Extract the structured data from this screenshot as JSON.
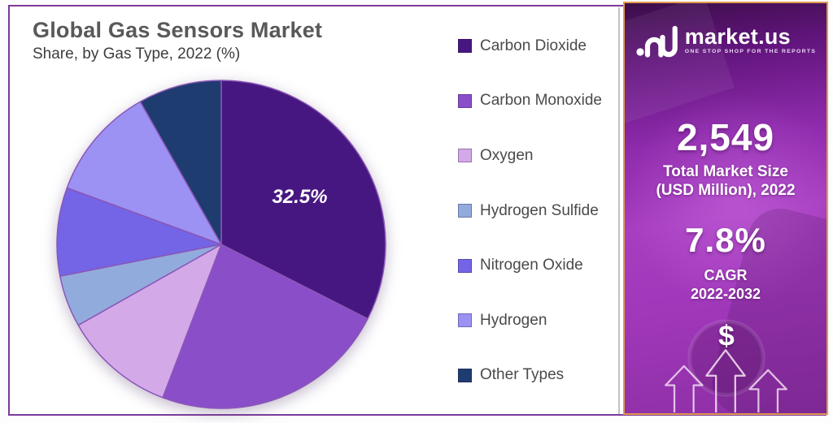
{
  "page": {
    "title": "Global Gas Sensors Market",
    "subtitle": "Share, by Gas Type, 2022 (%)"
  },
  "chart_data": {
    "type": "pie",
    "title": "Global Gas Sensors Market Share, by Gas Type, 2022 (%)",
    "unit": "%",
    "categories": [
      "Carbon Dioxide",
      "Carbon Monoxide",
      "Oxygen",
      "Hydrogen Sulfide",
      "Nitrogen Oxide",
      "Hydrogen",
      "Other Types"
    ],
    "values": [
      32.5,
      23.3,
      11.0,
      5.1,
      8.7,
      11.2,
      8.2
    ],
    "colors": [
      "#471781",
      "#8a4ec8",
      "#d4a9e8",
      "#92abdd",
      "#7365e6",
      "#9c92f3",
      "#1e3c6f"
    ],
    "slice_stroke": "#8a56b8",
    "start_angle_deg": 0,
    "direction": "clockwise",
    "legend_position": "right",
    "labeled_slice": {
      "index": 0,
      "text": "32.5%",
      "radius_frac": 0.56
    }
  },
  "sidebar": {
    "brand": "market.us",
    "tagline": "ONE STOP SHOP FOR THE REPORTS",
    "market_size_value": "2,549",
    "market_size_label_line1": "Total Market Size",
    "market_size_label_line2": "(USD Million), 2022",
    "cagr_value": "7.8%",
    "cagr_label_line1": "CAGR",
    "cagr_label_line2": "2022-2032",
    "dollar_symbol": "$"
  },
  "colors": {
    "page_border": "#7b3b9b",
    "sidebar_border": "#e09a4f",
    "title_text": "#58595b",
    "legend_text": "#4a4a4a",
    "divider": "#c2c2c2",
    "label_text": "#ffffff"
  }
}
